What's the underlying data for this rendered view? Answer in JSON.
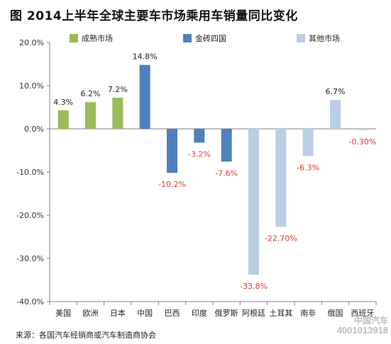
{
  "title": "图  2014上半年全球主要车市场乘用车销量同比变化",
  "source": "来源：各国汽车经销商或汽车制造商协会",
  "watermark": {
    "line1": "中国汽车",
    "line2": "4001013918"
  },
  "colors": {
    "mature": "#9bbb59",
    "brics": "#4f81bd",
    "other": "#b9cde5",
    "positive_label": "#222222",
    "negative_label": "#e03c31",
    "axis": "#7f7f7f",
    "grid": "#d9d9d9"
  },
  "chart_data": {
    "type": "bar",
    "title": "图  2014上半年全球主要车市场乘用车销量同比变化",
    "xlabel": "",
    "ylabel": "",
    "ylim": [
      -40,
      20
    ],
    "yticks": [
      20,
      10,
      0,
      -10,
      -20,
      -30,
      -40
    ],
    "ytick_labels": [
      "20.0%",
      "10.0%",
      "0.0%",
      "-10.0%",
      "-20.0%",
      "-30.0%",
      "-40.0%"
    ],
    "gridlines": false,
    "legend_position": "top",
    "legend": [
      {
        "key": "mature",
        "label": "成熟市场"
      },
      {
        "key": "brics",
        "label": "金砖四国"
      },
      {
        "key": "other",
        "label": "其他市场"
      }
    ],
    "categories": [
      "美国",
      "欧洲",
      "日本",
      "中国",
      "巴西",
      "印度",
      "俄罗斯",
      "阿根廷",
      "土耳其",
      "南非",
      "俄国",
      "西班牙"
    ],
    "values": [
      4.3,
      6.2,
      7.2,
      14.8,
      -10.2,
      -3.2,
      -7.6,
      -33.8,
      -22.7,
      -6.3,
      6.7,
      -0.3
    ],
    "data_labels": [
      "4.3%",
      "6.2%",
      "7.2%",
      "14.8%",
      "-10.2%",
      "-3.2%",
      "-7.6%",
      "-33.8%",
      "-22.70%",
      "-6.3%",
      "6.7%",
      "-0.30%"
    ],
    "groups": [
      "mature",
      "mature",
      "mature",
      "brics",
      "brics",
      "brics",
      "brics",
      "other",
      "other",
      "other",
      "other",
      "other"
    ]
  }
}
